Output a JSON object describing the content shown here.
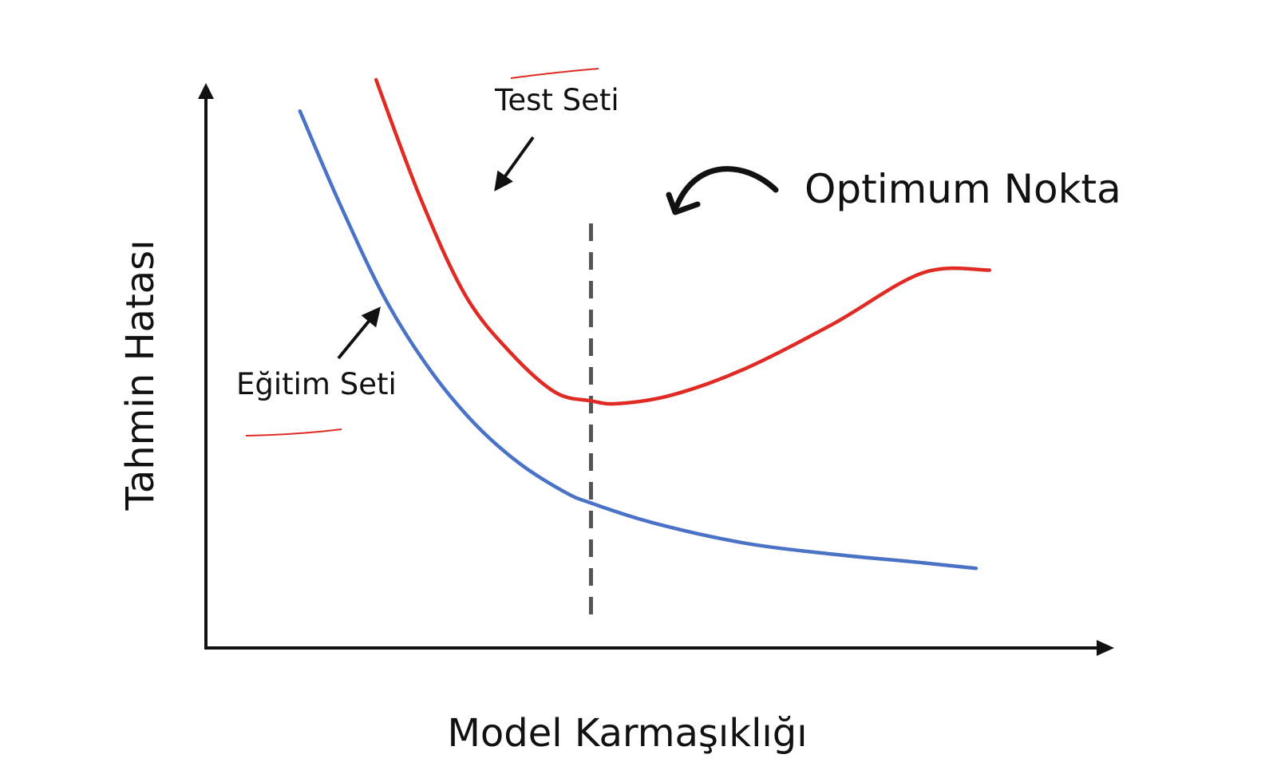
{
  "chart_data": {
    "type": "line",
    "xlabel": "Model Karmaşıklığı",
    "ylabel": "Tahmin Hatası",
    "xlim": [
      0,
      10
    ],
    "ylim": [
      0,
      10
    ],
    "grid": false,
    "axis_tick_labels": false,
    "optimum_x": 4.3,
    "series": [
      {
        "name": "Test Seti",
        "color": "#e02a24",
        "x": [
          1.9,
          2.4,
          2.9,
          3.4,
          3.9,
          4.3,
          4.6,
          5.2,
          6.0,
          7.0,
          8.0,
          8.75
        ],
        "y": [
          10.0,
          7.9,
          6.2,
          5.2,
          4.5,
          4.35,
          4.3,
          4.45,
          4.9,
          5.7,
          6.6,
          6.65
        ]
      },
      {
        "name": "Eğitim Seti",
        "color": "#4a72c6",
        "x": [
          1.05,
          1.5,
          2.0,
          2.5,
          3.0,
          3.5,
          4.0,
          4.3,
          5.0,
          6.0,
          7.0,
          8.0,
          8.6
        ],
        "y": [
          9.45,
          7.8,
          6.15,
          4.9,
          3.95,
          3.25,
          2.75,
          2.55,
          2.2,
          1.85,
          1.65,
          1.5,
          1.4
        ]
      }
    ],
    "annotations": {
      "optimum": "Optimum Nokta"
    }
  }
}
